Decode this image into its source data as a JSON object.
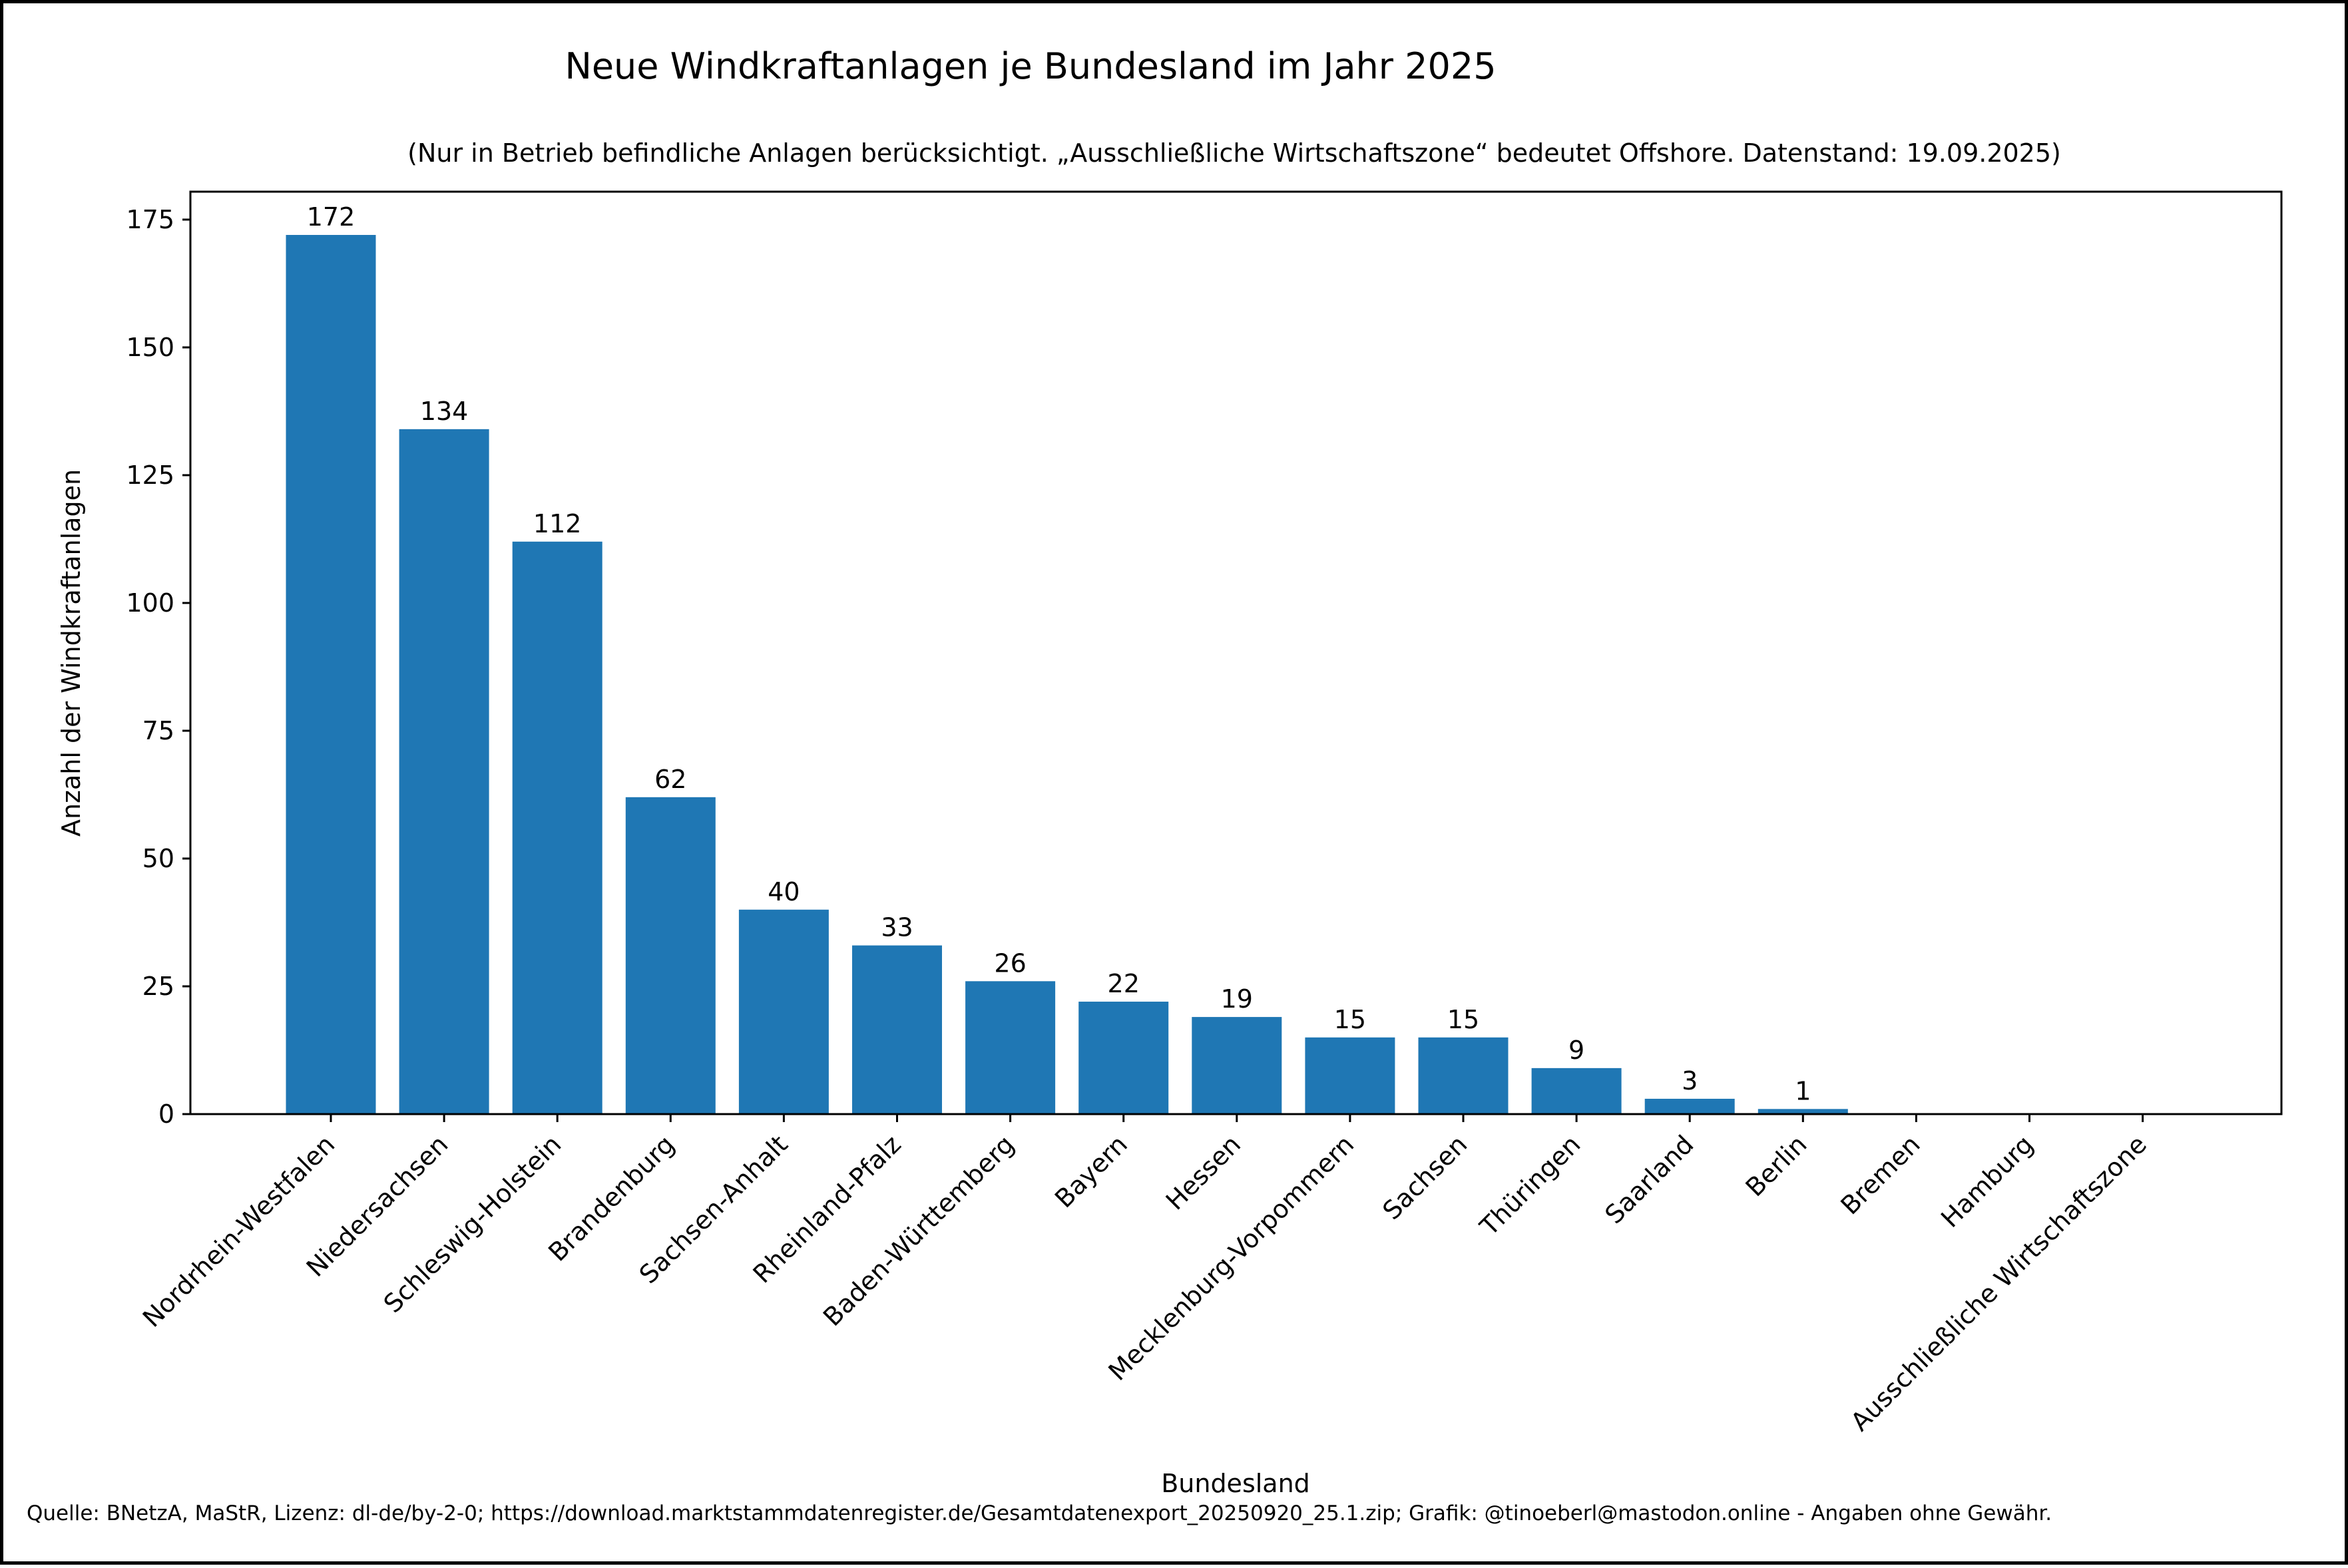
{
  "chart_data": {
    "type": "bar",
    "title": "Neue Windkraftanlagen je Bundesland im Jahr 2025",
    "subtitle": "(Nur in Betrieb befindliche Anlagen berücksichtigt. „Ausschließliche Wirtschaftszone“ bedeutet Offshore. Datenstand: 19.09.2025)",
    "xlabel": "Bundesland",
    "ylabel": "Anzahl der Windkraftanlagen",
    "ylim": [
      0,
      181
    ],
    "yticks": [
      0,
      25,
      50,
      75,
      100,
      125,
      150,
      175
    ],
    "grid": false,
    "bar_color": "#1f77b4",
    "categories": [
      "Nordrhein-Westfalen",
      "Niedersachsen",
      "Schleswig-Holstein",
      "Brandenburg",
      "Sachsen-Anhalt",
      "Rheinland-Pfalz",
      "Baden-Württemberg",
      "Bayern",
      "Hessen",
      "Mecklenburg-Vorpommern",
      "Sachsen",
      "Thüringen",
      "Saarland",
      "Berlin",
      "Bremen",
      "Hamburg",
      "Ausschließliche Wirtschaftszone"
    ],
    "values": [
      172,
      134,
      112,
      62,
      40,
      33,
      26,
      22,
      19,
      15,
      15,
      9,
      3,
      1,
      0,
      0,
      0
    ],
    "value_labels": [
      "172",
      "134",
      "112",
      "62",
      "40",
      "33",
      "26",
      "22",
      "19",
      "15",
      "15",
      "9",
      "3",
      "1",
      "",
      "",
      ""
    ]
  },
  "footer": {
    "source": "Quelle: BNetzA, MaStR, Lizenz: dl-de/by-2-0; https://download.marktstammdatenregister.de/Gesamtdatenexport_20250920_25.1.zip; Grafik: @tinoeberl@mastodon.online - Angaben ohne Gewähr."
  }
}
